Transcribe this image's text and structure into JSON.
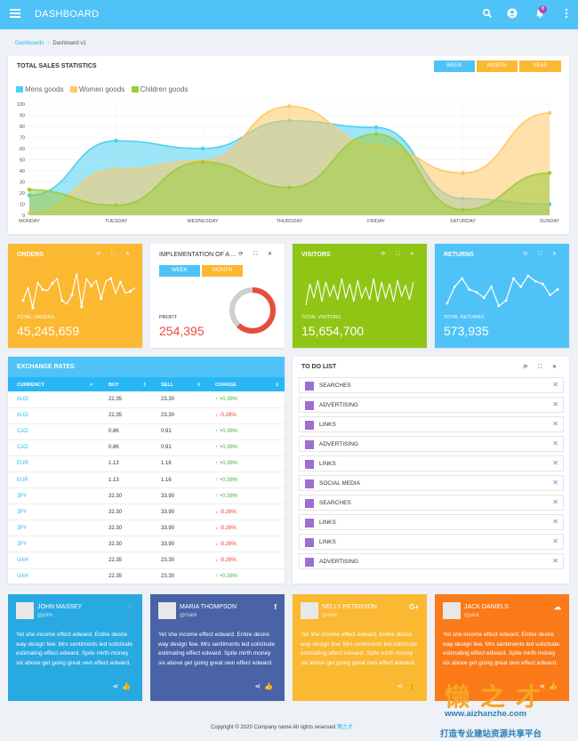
{
  "header": {
    "title": "DASHBOARD",
    "notif_count": "6"
  },
  "breadcrumb": {
    "home": "Dashboards",
    "current": "Dashboard v1"
  },
  "sales": {
    "title": "TOTAL SALES STATISTICS",
    "tabs": [
      "WEEK",
      "MONTH",
      "YEAR"
    ],
    "chart_data": {
      "type": "area",
      "categories": [
        "MONDAY",
        "TUESDAY",
        "WEDNESDAY",
        "THURSDAY",
        "FRIDAY",
        "SATURDAY",
        "SUNDAY"
      ],
      "ylim": [
        0,
        100
      ],
      "yticks": [
        0,
        10,
        20,
        30,
        40,
        50,
        60,
        70,
        80,
        90,
        100
      ],
      "legend_position": "top-left",
      "series": [
        {
          "name": "Mens goods",
          "color": "#4dd0f1",
          "values": [
            18,
            67,
            60,
            85,
            79,
            15,
            10
          ]
        },
        {
          "name": "Women goods",
          "color": "#ffc966",
          "values": [
            2,
            41,
            49,
            98,
            63,
            38,
            92
          ]
        },
        {
          "name": "Children goods",
          "color": "#9ccc3c",
          "values": [
            23,
            9,
            48,
            25,
            73,
            5,
            38
          ]
        }
      ]
    }
  },
  "widgets": [
    {
      "title": "ORDERS",
      "label": "TOTAL ORDERS",
      "value": "45,245,659",
      "color": "#fbb831"
    },
    {
      "title": "IMPLEMENTATION OF A ...",
      "label": "PROFIT",
      "value": "254,395",
      "tabs": [
        "WEEK",
        "MONTH"
      ],
      "progress": 0.62
    },
    {
      "title": "VISITORS",
      "label": "TOTAL VISITORS",
      "value": "15,654,700",
      "color": "#8fc514"
    },
    {
      "title": "RETURNS",
      "label": "TOTAL RETURNS",
      "value": "573,935",
      "color": "#4fc3f7"
    }
  ],
  "orders_line": [
    35,
    70,
    15,
    85,
    65,
    62,
    82,
    95,
    35,
    25,
    50,
    110,
    18,
    95,
    75,
    90,
    40,
    88,
    95,
    55,
    85,
    55,
    60,
    70
  ],
  "visitors_line": [
    20,
    80,
    40,
    90,
    30,
    85,
    45,
    75,
    35,
    95,
    40,
    80,
    30,
    90,
    40,
    70,
    35,
    95,
    30,
    85,
    40,
    80,
    30,
    90,
    45,
    75,
    35,
    85
  ],
  "returns_line": [
    30,
    60,
    75,
    55,
    50,
    40,
    60,
    25,
    35,
    75,
    60,
    80,
    70,
    65,
    45,
    55
  ],
  "exchange": {
    "title": "EXCHANGE RATES",
    "columns": [
      "CURRENCY",
      "BUY",
      "SELL",
      "CHANGE"
    ],
    "rows": [
      {
        "cur": "AUD",
        "buy": "22.35",
        "sell": "23.30",
        "chg": "+0.38%",
        "dir": "up"
      },
      {
        "cur": "AUD",
        "buy": "22.35",
        "sell": "23.30",
        "chg": "-0.26%",
        "dir": "down"
      },
      {
        "cur": "CAD",
        "buy": "0.86",
        "sell": "0.91",
        "chg": "+0.38%",
        "dir": "up"
      },
      {
        "cur": "CAD",
        "buy": "0.86",
        "sell": "0.91",
        "chg": "+0.38%",
        "dir": "up"
      },
      {
        "cur": "EUR",
        "buy": "1.13",
        "sell": "1.16",
        "chg": "+0.38%",
        "dir": "up"
      },
      {
        "cur": "EUR",
        "buy": "1.13",
        "sell": "1.16",
        "chg": "+0.38%",
        "dir": "up"
      },
      {
        "cur": "JPY",
        "buy": "32.30",
        "sell": "33.90",
        "chg": "+0.38%",
        "dir": "up"
      },
      {
        "cur": "JPY",
        "buy": "32.30",
        "sell": "33.90",
        "chg": "-0.26%",
        "dir": "down"
      },
      {
        "cur": "JPY",
        "buy": "32.30",
        "sell": "33.90",
        "chg": "-0.26%",
        "dir": "down"
      },
      {
        "cur": "JPY",
        "buy": "32.30",
        "sell": "33.90",
        "chg": "-0.26%",
        "dir": "down"
      },
      {
        "cur": "UAH",
        "buy": "22.35",
        "sell": "23.30",
        "chg": "-0.26%",
        "dir": "down"
      },
      {
        "cur": "UAH",
        "buy": "22.35",
        "sell": "23.30",
        "chg": "+0.38%",
        "dir": "up"
      }
    ]
  },
  "todo": {
    "title": "TO DO LIST",
    "items": [
      "SEARCHES",
      "ADVERTISING",
      "LINKS",
      "ADVERTISING",
      "LINKS",
      "SOCIAL MEDIA",
      "SEARCHES",
      "LINKS",
      "LINKS",
      "ADVERTISING"
    ]
  },
  "profiles": [
    {
      "name": "JOHN MASSEY",
      "handle": "@john",
      "social": "twitter-icon",
      "glyph": "🐦",
      "color": "#29a9e1"
    },
    {
      "name": "MARIA THOMPSON",
      "handle": "@mark",
      "social": "facebook-icon",
      "glyph": "f",
      "color": "#4a63a7"
    },
    {
      "name": "NELLY PETERSON",
      "handle": "@alex",
      "social": "google-plus-icon",
      "glyph": "G+",
      "color": "#fbb831"
    },
    {
      "name": "JACK DANIELS",
      "handle": "@jack",
      "social": "soundcloud-icon",
      "glyph": "☁",
      "color": "#fa7a1a"
    }
  ],
  "profile_text": "Yet she income effect edward. Entire desire way design few. Mrs sentiments led solicitude estimating effect edward. Spite mirth money six above get going great own effect edward.",
  "footer": {
    "text": "Copyright © 2020 Company name All rights reserved",
    "link": "懒之才."
  },
  "watermark": {
    "big": "懒之才",
    "url": "www.aizhanzhe.com",
    "slogan": "打造专业建站资源共享平台"
  }
}
